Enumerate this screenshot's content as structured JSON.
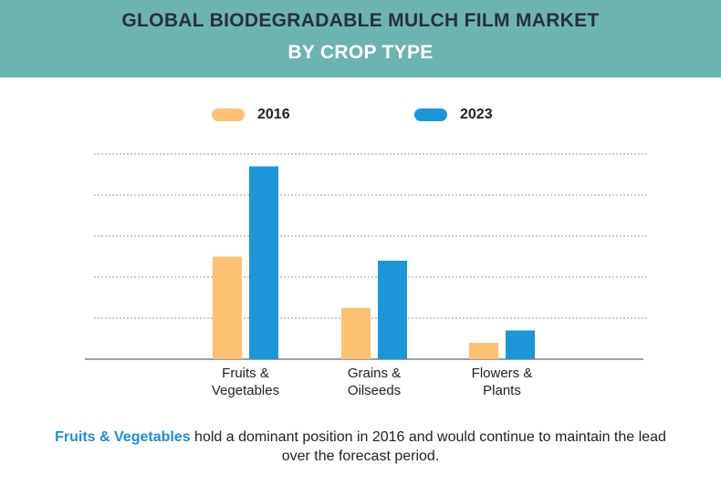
{
  "header": {
    "title_line1": "GLOBAL BIODEGRADABLE MULCH FILM MARKET",
    "title_line2": "BY CROP TYPE"
  },
  "colors": {
    "banner": "#6cb4b0",
    "series_2016": "#fdc274",
    "series_2023": "#1b97d9",
    "highlight": "#1d8fd6"
  },
  "chart_data": {
    "type": "bar",
    "title": "",
    "xlabel": "",
    "ylabel": "",
    "ylim": [
      0,
      5
    ],
    "y_ticks_labeled": false,
    "grid": true,
    "legend_position": "top",
    "categories": [
      [
        "Fruits &",
        "Vegetables"
      ],
      [
        "Grains &",
        "Oilseeds"
      ],
      [
        "Flowers &",
        "Plants"
      ]
    ],
    "series": [
      {
        "name": "2016",
        "color": "#fdc274",
        "values": [
          2.5,
          1.25,
          0.4
        ]
      },
      {
        "name": "2023",
        "color": "#1b97d9",
        "values": [
          4.7,
          2.4,
          0.7
        ]
      }
    ]
  },
  "note": {
    "highlight": "Fruits & Vegetables",
    "rest": " hold a dominant position in 2016 and would continue to maintain the lead over the forecast period."
  }
}
